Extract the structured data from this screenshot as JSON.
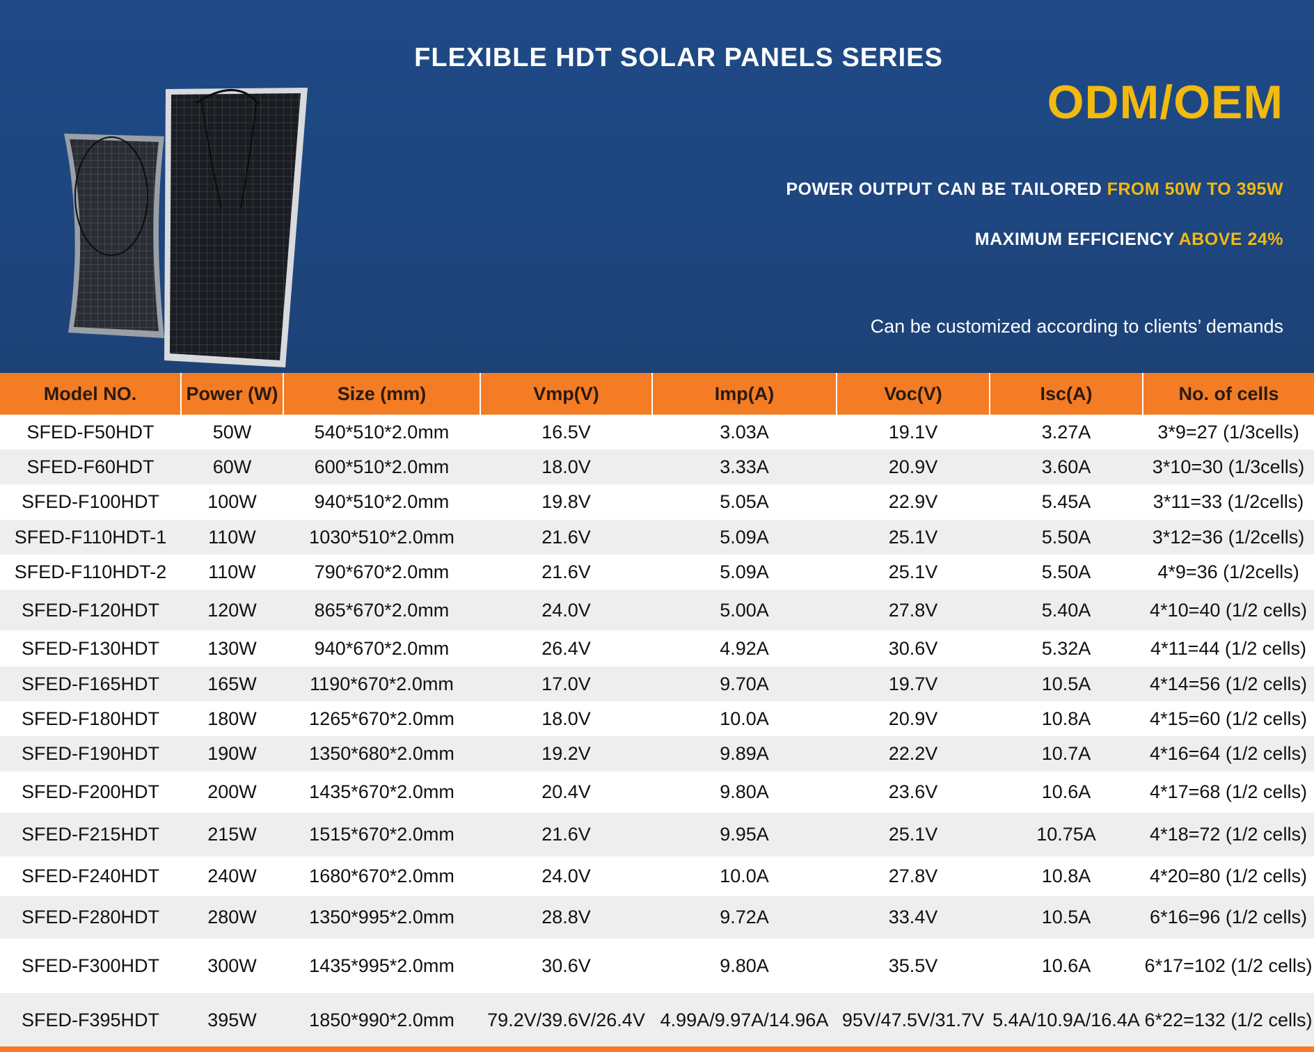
{
  "banner": {
    "title": "FLEXIBLE HDT SOLAR PANELS SERIES",
    "odm": "ODM/OEM",
    "tagline1_prefix": "POWER OUTPUT CAN BE TAILORED ",
    "tagline1_highlight": "FROM 50W TO 395W",
    "tagline2_prefix": "MAXIMUM EFFICIENCY ",
    "tagline2_highlight": "ABOVE 24%",
    "custom_note": "Can be customized according to clients’ demands"
  },
  "colors": {
    "banner_bg": "#1f4a86",
    "accent_orange": "#f47c24",
    "highlight_gold": "#f2b90f"
  },
  "table": {
    "headers": [
      "Model NO.",
      "Power (W)",
      "Size (mm)",
      "Vmp(V)",
      "Imp(A)",
      "Voc(V)",
      "Isc(A)",
      "No. of cells"
    ],
    "rows": [
      [
        "SFED-F50HDT",
        "50W",
        "540*510*2.0mm",
        "16.5V",
        "3.03A",
        "19.1V",
        "3.27A",
        "3*9=27 (1/3cells)"
      ],
      [
        "SFED-F60HDT",
        "60W",
        "600*510*2.0mm",
        "18.0V",
        "3.33A",
        "20.9V",
        "3.60A",
        "3*10=30 (1/3cells)"
      ],
      [
        "SFED-F100HDT",
        "100W",
        "940*510*2.0mm",
        "19.8V",
        "5.05A",
        "22.9V",
        "5.45A",
        "3*11=33 (1/2cells)"
      ],
      [
        "SFED-F110HDT-1",
        "110W",
        "1030*510*2.0mm",
        "21.6V",
        "5.09A",
        "25.1V",
        "5.50A",
        "3*12=36 (1/2cells)"
      ],
      [
        "SFED-F110HDT-2",
        "110W",
        "790*670*2.0mm",
        "21.6V",
        "5.09A",
        "25.1V",
        "5.50A",
        "4*9=36 (1/2cells)"
      ],
      [
        "SFED-F120HDT",
        "120W",
        "865*670*2.0mm",
        "24.0V",
        "5.00A",
        "27.8V",
        "5.40A",
        "4*10=40 (1/2 cells)"
      ],
      [
        "SFED-F130HDT",
        "130W",
        "940*670*2.0mm",
        "26.4V",
        "4.92A",
        "30.6V",
        "5.32A",
        "4*11=44 (1/2 cells)"
      ],
      [
        "SFED-F165HDT",
        "165W",
        "1190*670*2.0mm",
        "17.0V",
        "9.70A",
        "19.7V",
        "10.5A",
        "4*14=56 (1/2 cells)"
      ],
      [
        "SFED-F180HDT",
        "180W",
        "1265*670*2.0mm",
        "18.0V",
        "10.0A",
        "20.9V",
        "10.8A",
        "4*15=60 (1/2 cells)"
      ],
      [
        "SFED-F190HDT",
        "190W",
        "1350*680*2.0mm",
        "19.2V",
        "9.89A",
        "22.2V",
        "10.7A",
        "4*16=64 (1/2 cells)"
      ],
      [
        "SFED-F200HDT",
        "200W",
        "1435*670*2.0mm",
        "20.4V",
        "9.80A",
        "23.6V",
        "10.6A",
        "4*17=68 (1/2 cells)"
      ],
      [
        "SFED-F215HDT",
        "215W",
        "1515*670*2.0mm",
        "21.6V",
        "9.95A",
        "25.1V",
        "10.75A",
        "4*18=72 (1/2 cells)"
      ],
      [
        "SFED-F240HDT",
        "240W",
        "1680*670*2.0mm",
        "24.0V",
        "10.0A",
        "27.8V",
        "10.8A",
        "4*20=80 (1/2 cells)"
      ],
      [
        "SFED-F280HDT",
        "280W",
        "1350*995*2.0mm",
        "28.8V",
        "9.72A",
        "33.4V",
        "10.5A",
        "6*16=96 (1/2 cells)"
      ],
      [
        "SFED-F300HDT",
        "300W",
        "1435*995*2.0mm",
        "30.6V",
        "9.80A",
        "35.5V",
        "10.6A",
        "6*17=102 (1/2 cells)"
      ],
      [
        "SFED-F395HDT",
        "395W",
        "1850*990*2.0mm",
        "79.2V/39.6V/26.4V",
        "4.99A/9.97A/14.96A",
        "95V/47.5V/31.7V",
        "5.4A/10.9A/16.4A",
        "6*22=132 (1/2 cells)"
      ]
    ]
  }
}
